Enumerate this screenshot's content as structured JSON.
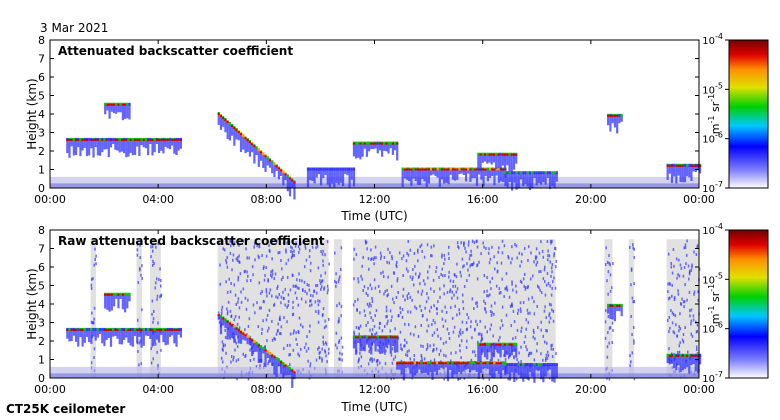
{
  "date": "3 Mar 2021",
  "instrument": "CT25K ceilometer",
  "colors": {
    "cloud_base": "#d40000",
    "signal_low": "#3030ff",
    "signal_mid": "#00c000",
    "signal_high": "#ff9900",
    "clutter": "#c8c8c8"
  },
  "chart_data": [
    {
      "type": "heatmap",
      "title": "Attenuated backscatter coefficient",
      "xlabel": "Time (UTC)",
      "ylabel": "Height (km)",
      "xlim": [
        0,
        24
      ],
      "ylim": [
        0,
        8
      ],
      "x_ticks": [
        "00:00",
        "04:00",
        "08:00",
        "12:00",
        "16:00",
        "20:00",
        "00:00"
      ],
      "y_ticks": [
        "0",
        "1",
        "2",
        "3",
        "4",
        "5",
        "6",
        "7",
        "8"
      ],
      "colorbar": {
        "scale": "log",
        "range": [
          1e-07,
          0.0001
        ],
        "tick_labels": [
          "10",
          "10",
          "10",
          "10"
        ],
        "tick_exponents": [
          "-7",
          "-6",
          "-5",
          "-4"
        ],
        "unit": "m",
        "unit_exp1": "-1",
        "unit_mid": "sr",
        "unit_exp2": "-1"
      },
      "features": [
        {
          "name": "Cloud layer",
          "start_hour": 0.6,
          "end_hour": 4.8,
          "height_km": 2.6,
          "intensity": 0.6
        },
        {
          "name": "Cloud layer",
          "start_hour": 2.0,
          "end_hour": 2.9,
          "height_km": 4.5,
          "intensity": 0.7
        },
        {
          "name": "Descending plume",
          "start_hour": 6.2,
          "end_hour": 9.0,
          "height_km": 4.0,
          "end_height_km": 0.3,
          "intensity": 0.8
        },
        {
          "name": "Aerosol",
          "start_hour": 9.5,
          "end_hour": 11.2,
          "height_km": 1.0,
          "intensity": 0.5
        },
        {
          "name": "Cloud layer",
          "start_hour": 11.2,
          "end_hour": 12.8,
          "height_km": 2.4,
          "intensity": 0.7
        },
        {
          "name": "Cloud base",
          "start_hour": 13.0,
          "end_hour": 16.8,
          "height_km": 1.0,
          "intensity": 0.8
        },
        {
          "name": "Cloud layer",
          "start_hour": 15.8,
          "end_hour": 17.2,
          "height_km": 1.8,
          "intensity": 0.7
        },
        {
          "name": "Cloud base",
          "start_hour": 16.8,
          "end_hour": 18.7,
          "height_km": 0.8,
          "intensity": 0.55
        },
        {
          "name": "Cloud layer",
          "start_hour": 20.6,
          "end_hour": 21.1,
          "height_km": 3.9,
          "intensity": 0.65
        },
        {
          "name": "Cloud base",
          "start_hour": 22.8,
          "end_hour": 24.0,
          "height_km": 1.2,
          "intensity": 0.6
        }
      ]
    },
    {
      "type": "heatmap",
      "title": "Raw attenuated backscatter coefficient",
      "xlabel": "Time (UTC)",
      "ylabel": "Height (km)",
      "xlim": [
        0,
        24
      ],
      "ylim": [
        0,
        8
      ],
      "x_ticks": [
        "00:00",
        "04:00",
        "08:00",
        "12:00",
        "16:00",
        "20:00",
        "00:00"
      ],
      "y_ticks": [
        "0",
        "1",
        "2",
        "3",
        "4",
        "5",
        "6",
        "7",
        "8"
      ],
      "colorbar": {
        "scale": "log",
        "range": [
          1e-07,
          0.0001
        ],
        "tick_labels": [
          "10",
          "10",
          "10",
          "10"
        ],
        "tick_exponents": [
          "-7",
          "-6",
          "-5",
          "-4"
        ],
        "unit": "m",
        "unit_exp1": "-1",
        "unit_mid": "sr",
        "unit_exp2": "-1"
      },
      "features": [
        {
          "name": "Cloud layer",
          "start_hour": 0.6,
          "end_hour": 4.8,
          "height_km": 2.6,
          "intensity": 0.6
        },
        {
          "name": "Cloud layer",
          "start_hour": 2.0,
          "end_hour": 2.9,
          "height_km": 4.5,
          "intensity": 0.7
        },
        {
          "name": "Descending plume",
          "start_hour": 6.2,
          "end_hour": 9.0,
          "height_km": 3.4,
          "end_height_km": 0.3,
          "intensity": 0.8
        },
        {
          "name": "Cloud layer",
          "start_hour": 11.2,
          "end_hour": 12.8,
          "height_km": 2.2,
          "intensity": 0.7
        },
        {
          "name": "Cloud base",
          "start_hour": 12.8,
          "end_hour": 16.8,
          "height_km": 0.8,
          "intensity": 0.8
        },
        {
          "name": "Cloud layer",
          "start_hour": 15.8,
          "end_hour": 17.2,
          "height_km": 1.8,
          "intensity": 0.7
        },
        {
          "name": "Cloud base",
          "start_hour": 16.8,
          "end_hour": 18.7,
          "height_km": 0.7,
          "intensity": 0.55
        },
        {
          "name": "Cloud layer",
          "start_hour": 20.6,
          "end_hour": 21.1,
          "height_km": 3.9,
          "intensity": 0.65
        },
        {
          "name": "Cloud base",
          "start_hour": 22.8,
          "end_hour": 24.0,
          "height_km": 1.2,
          "intensity": 0.6
        }
      ],
      "noise_columns": [
        {
          "start_hour": 1.5,
          "end_hour": 1.7,
          "top_km": 7.5
        },
        {
          "start_hour": 3.2,
          "end_hour": 3.4,
          "top_km": 7.5
        },
        {
          "start_hour": 3.7,
          "end_hour": 4.1,
          "top_km": 7.5
        },
        {
          "start_hour": 6.2,
          "end_hour": 10.3,
          "top_km": 7.5
        },
        {
          "start_hour": 10.5,
          "end_hour": 10.8,
          "top_km": 7.5
        },
        {
          "start_hour": 11.2,
          "end_hour": 18.7,
          "top_km": 7.5
        },
        {
          "start_hour": 20.5,
          "end_hour": 20.8,
          "top_km": 7.5
        },
        {
          "start_hour": 21.4,
          "end_hour": 21.6,
          "top_km": 7.5
        },
        {
          "start_hour": 22.8,
          "end_hour": 24.0,
          "top_km": 7.5
        }
      ]
    }
  ]
}
